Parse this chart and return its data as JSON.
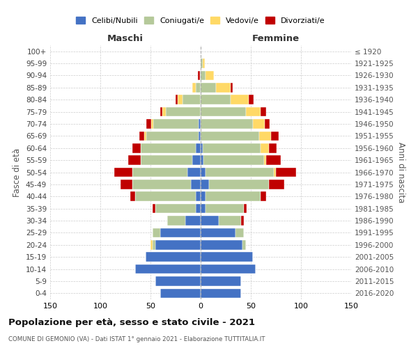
{
  "age_groups": [
    "0-4",
    "5-9",
    "10-14",
    "15-19",
    "20-24",
    "25-29",
    "30-34",
    "35-39",
    "40-44",
    "45-49",
    "50-54",
    "55-59",
    "60-64",
    "65-69",
    "70-74",
    "75-79",
    "80-84",
    "85-89",
    "90-94",
    "95-99",
    "100+"
  ],
  "birth_years": [
    "2016-2020",
    "2011-2015",
    "2006-2010",
    "2001-2005",
    "1996-2000",
    "1991-1995",
    "1986-1990",
    "1981-1985",
    "1976-1980",
    "1971-1975",
    "1966-1970",
    "1961-1965",
    "1956-1960",
    "1951-1955",
    "1946-1950",
    "1941-1945",
    "1936-1940",
    "1931-1935",
    "1926-1930",
    "1921-1925",
    "≤ 1920"
  ],
  "colors": {
    "celibe": "#4472c4",
    "coniugato": "#b5c99a",
    "vedovo": "#ffd966",
    "divorziato": "#c00000"
  },
  "male_celibe": [
    40,
    45,
    65,
    55,
    45,
    40,
    15,
    5,
    5,
    10,
    13,
    8,
    5,
    2,
    2,
    0,
    0,
    0,
    0,
    0,
    0
  ],
  "male_coniugato": [
    0,
    0,
    0,
    0,
    3,
    8,
    18,
    40,
    60,
    58,
    55,
    52,
    55,
    52,
    45,
    35,
    18,
    5,
    1,
    0,
    0
  ],
  "male_vedovo": [
    0,
    0,
    0,
    0,
    2,
    0,
    0,
    0,
    0,
    0,
    0,
    0,
    0,
    2,
    2,
    3,
    5,
    3,
    0,
    0,
    0
  ],
  "male_divorziato": [
    0,
    0,
    0,
    0,
    0,
    0,
    0,
    3,
    5,
    12,
    18,
    12,
    8,
    5,
    5,
    2,
    2,
    0,
    2,
    0,
    0
  ],
  "female_nubile": [
    40,
    40,
    55,
    52,
    42,
    35,
    18,
    5,
    5,
    8,
    5,
    3,
    2,
    0,
    0,
    0,
    0,
    0,
    0,
    0,
    0
  ],
  "female_coniugata": [
    0,
    0,
    0,
    0,
    3,
    8,
    22,
    38,
    55,
    60,
    68,
    60,
    58,
    58,
    52,
    45,
    30,
    15,
    5,
    2,
    0
  ],
  "female_vedova": [
    0,
    0,
    0,
    0,
    0,
    0,
    0,
    0,
    0,
    0,
    2,
    2,
    8,
    12,
    12,
    15,
    18,
    15,
    8,
    2,
    0
  ],
  "female_divorziata": [
    0,
    0,
    0,
    0,
    0,
    0,
    3,
    3,
    5,
    15,
    20,
    15,
    8,
    8,
    5,
    5,
    5,
    2,
    0,
    0,
    0
  ],
  "xlim": 150,
  "title": "Popolazione per età, sesso e stato civile - 2021",
  "subtitle": "COMUNE DI GEMONIO (VA) - Dati ISTAT 1° gennaio 2021 - Elaborazione TUTTITALIA.IT",
  "xlabel_left": "Maschi",
  "xlabel_right": "Femmine",
  "ylabel": "Fasce di età",
  "ylabel_right": "Anni di nascita",
  "legend_labels": [
    "Celibi/Nubili",
    "Coniugati/e",
    "Vedovi/e",
    "Divorziati/e"
  ],
  "background_color": "#ffffff",
  "grid_color": "#cccccc"
}
